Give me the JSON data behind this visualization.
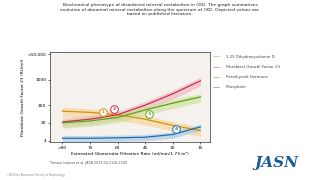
{
  "title": "Biochemical phenotype of disordered mineral metabolism in CKD. The graph summarizes\nevolution of abnormal mineral metabolism along the spectrum of CKD. Depicted values are\nbased on published literature.",
  "xlabel": "Estimated Glomerular Filtration Rate (ml/min/1.73 m²)",
  "ylabel": "Fibroblast Growth Factor 23 (RU/ml)",
  "citation": "Tamara Isakova et al. JASN 2019;30:2128-2200",
  "copyright": "©2019 by American Society of Nephrology",
  "legend": [
    "1,25 Dihydroxyvitamin D",
    "Fibroblast Growth Factor 23",
    "Parathyroid Hormone",
    "Phosphate"
  ],
  "legend_colors": [
    "#d4900c",
    "#c83050",
    "#60a020",
    "#2070b0"
  ],
  "band_colors": [
    "#f5d090",
    "#f0b0b8",
    "#c8e090",
    "#a0c8e8"
  ],
  "curve_colors": [
    "#d4900c",
    "#c83050",
    "#60a020",
    "#2070b0"
  ],
  "background": "#ffffff",
  "plot_bg": "#f5f2ee"
}
